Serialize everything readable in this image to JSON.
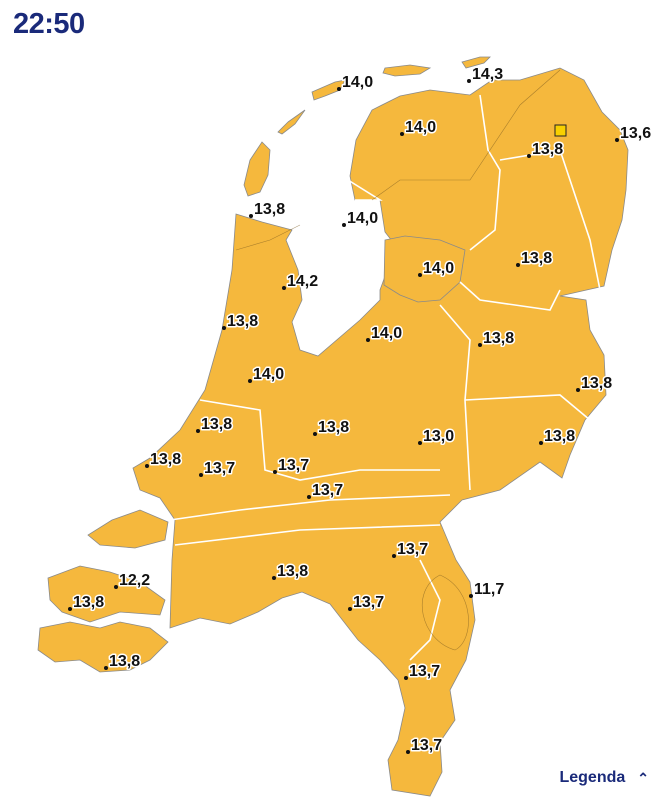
{
  "header": {
    "time": "22:50"
  },
  "map": {
    "land_color": "#f5b83d",
    "station_marker_color": "#f8d000",
    "labels": [
      "14,0",
      "14,3",
      "14,0",
      "13,8",
      "13,6",
      "13,8",
      "14,0",
      "14,0",
      "13,8",
      "14,2",
      "13,8",
      "14,0",
      "13,8",
      "13,8",
      "14,0",
      "13,8",
      "13,8",
      "13,0",
      "13,8",
      "13,8",
      "13,7",
      "13,7",
      "13,7",
      "13,7",
      "13,8",
      "12,2",
      "11,7",
      "13,8",
      "13,7",
      "13,8",
      "13,7",
      "13,7"
    ]
  },
  "legend": {
    "label": "Legenda",
    "icon": "chevron-up-icon"
  }
}
